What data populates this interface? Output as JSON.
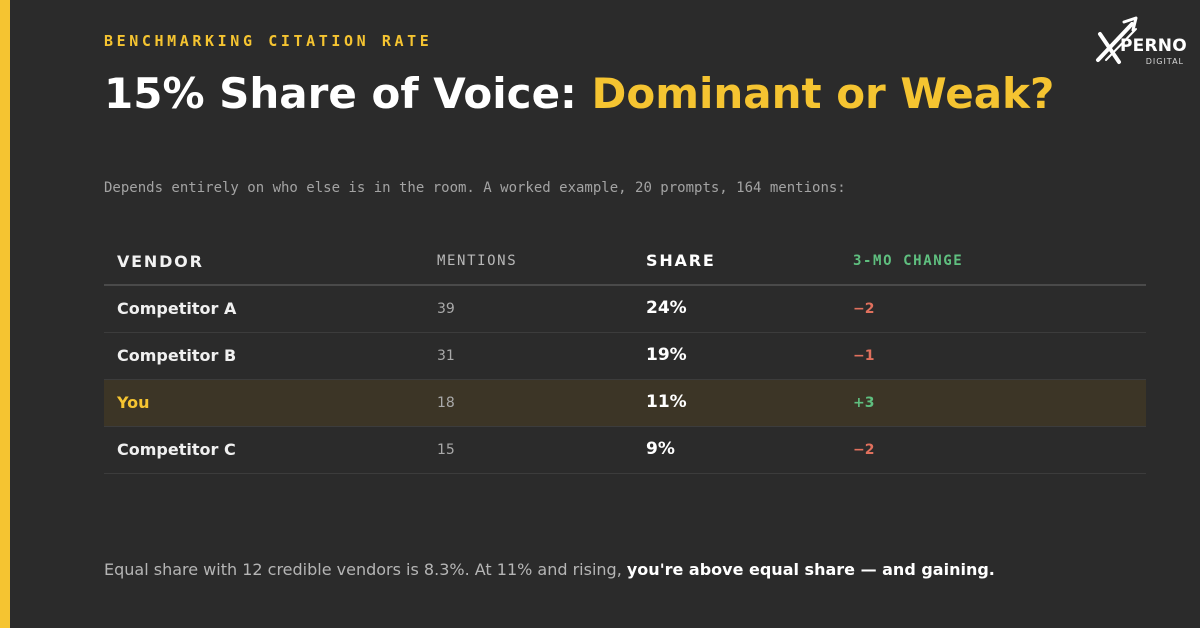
{
  "eyebrow": "BENCHMARKING CITATION RATE",
  "title": {
    "prefix": "15% Share of Voice: ",
    "highlight": "Dominant or Weak?"
  },
  "subtitle": "Depends entirely on who else is in the room. A worked example, 20 prompts, 164 mentions:",
  "logo": {
    "word": "PERNO",
    "sub": "DIGITAL",
    "icon": "x-arrow-logo-icon"
  },
  "table": {
    "headers": {
      "vendor": "VENDOR",
      "mentions": "MENTIONS",
      "share": "SHARE",
      "change": "3-MO CHANGE"
    },
    "rows": [
      {
        "vendor": "Competitor A",
        "mentions": "39",
        "share": "24%",
        "change": "−2"
      },
      {
        "vendor": "Competitor B",
        "mentions": "31",
        "share": "19%",
        "change": "−1"
      },
      {
        "vendor": "You",
        "mentions": "18",
        "share": "11%",
        "change": "+3"
      },
      {
        "vendor": "Competitor C",
        "mentions": "15",
        "share": "9%",
        "change": "−2"
      }
    ]
  },
  "footer": {
    "text": "Equal share with 12 credible vendors is 8.3%. At 11% and rising, ",
    "emphasis": "you're above equal share — and gaining."
  },
  "colors": {
    "accent": "#f5c431",
    "background": "#2b2b2b",
    "positive": "#5fbf7f",
    "negative": "#e0705d"
  }
}
